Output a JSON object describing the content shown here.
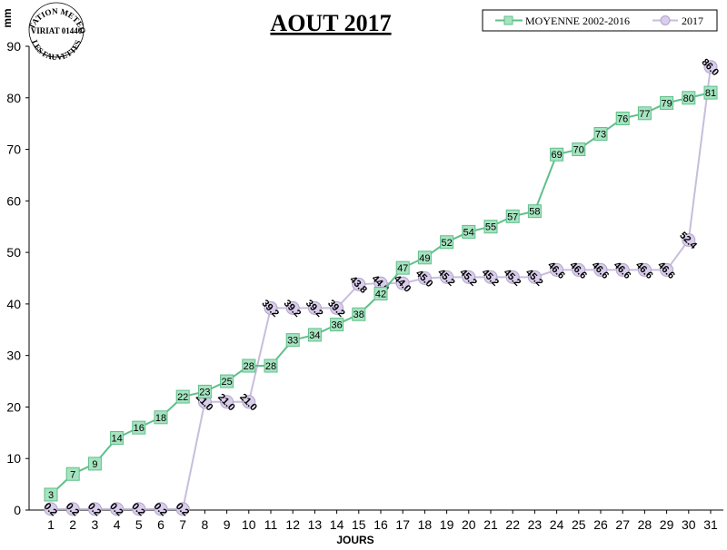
{
  "stamp": {
    "line_top": "STATION METEO",
    "line_middle": "VIRIAT 01440",
    "line_bottom": "LES FAUVETTES"
  },
  "chart_data": {
    "type": "line",
    "title": "AOUT 2017",
    "xlabel": "JOURS",
    "ylabel": "mm",
    "ylim": [
      0,
      90
    ],
    "yticks": [
      0,
      10,
      20,
      30,
      40,
      50,
      60,
      70,
      80,
      90
    ],
    "x": [
      1,
      2,
      3,
      4,
      5,
      6,
      7,
      8,
      9,
      10,
      11,
      12,
      13,
      14,
      15,
      16,
      17,
      18,
      19,
      20,
      21,
      22,
      23,
      24,
      25,
      26,
      27,
      28,
      29,
      30,
      31
    ],
    "legend_position": "top-right",
    "grid": false,
    "series": [
      {
        "name": "MOYENNE 2002-2016",
        "color": "#5fbf8a",
        "fill": "#a6e3c0",
        "marker": "square",
        "values": [
          3,
          7,
          9,
          14,
          16,
          18,
          22,
          23,
          25,
          28,
          28,
          33,
          34,
          36,
          38,
          42,
          47,
          49,
          52,
          54,
          55,
          57,
          58,
          69,
          70,
          73,
          76,
          77,
          79,
          80,
          81
        ],
        "labels": [
          "3",
          "7",
          "9",
          "14",
          "16",
          "18",
          "22",
          "23",
          "25",
          "28",
          "28",
          "33",
          "34",
          "36",
          "38",
          "42",
          "47",
          "49",
          "52",
          "54",
          "55",
          "57",
          "58",
          "69",
          "70",
          "73",
          "76",
          "77",
          "79",
          "80",
          "81"
        ]
      },
      {
        "name": "2017",
        "color": "#c7bedc",
        "fill": "#d9cdeb",
        "marker": "circle",
        "values": [
          0.2,
          0.2,
          0.2,
          0.2,
          0.2,
          0.2,
          0.2,
          21.0,
          21.0,
          21.0,
          39.2,
          39.2,
          39.2,
          39.2,
          43.8,
          44.0,
          44.0,
          45.0,
          45.2,
          45.2,
          45.2,
          45.2,
          45.2,
          46.6,
          46.6,
          46.6,
          46.6,
          46.6,
          46.6,
          52.4,
          86.0
        ],
        "labels": [
          "0.2",
          "0.2",
          "0.2",
          "0.2",
          "0.2",
          "0.2",
          "0.2",
          "21.0",
          "21.0",
          "21.0",
          "39.2",
          "39.2",
          "39.2",
          "39.2",
          "43.8",
          "44.0",
          "44.0",
          "45.0",
          "45.2",
          "45.2",
          "45.2",
          "45.2",
          "45.2",
          "46.6",
          "46.6",
          "46.6",
          "46.6",
          "46.6",
          "46.6",
          "52.4",
          "86.0"
        ]
      }
    ]
  }
}
